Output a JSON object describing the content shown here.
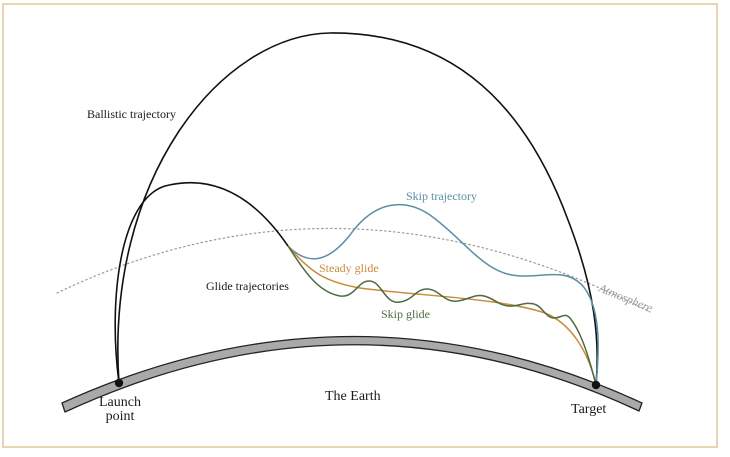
{
  "labels": {
    "ballistic": "Ballistic trajectory",
    "skip_trajectory": "Skip trajectory",
    "steady_glide": "Steady glide",
    "glide_trajectories": "Glide trajectories",
    "skip_glide": "Skip glide",
    "atmosphere": "Atmosphere",
    "earth": "The Earth",
    "launch_line1": "Launch",
    "launch_line2": "point",
    "target": "Target"
  },
  "colors": {
    "border": "#e2c79a",
    "ballistic": "#111111",
    "skip_trajectory": "#5b8fa3",
    "steady_glide": "#c98a3a",
    "skip_glide": "#4f6b3f",
    "atmosphere": "#9a9a9a",
    "earth_fill": "#a9a9a9",
    "earth_stroke": "#222222"
  }
}
